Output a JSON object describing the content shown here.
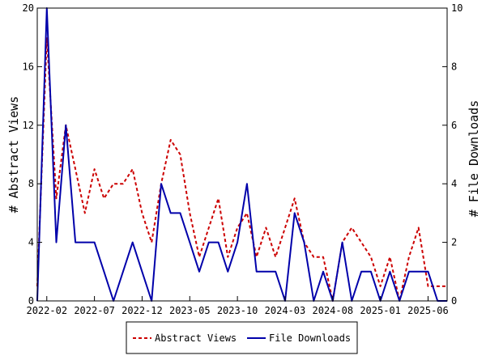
{
  "chart_data": {
    "type": "line",
    "title": "",
    "x_tick_labels": [
      "2022-02",
      "2022-07",
      "2022-12",
      "2023-05",
      "2023-10",
      "2024-03",
      "2024-08",
      "2025-01",
      "2025-06"
    ],
    "x_range": [
      "2022-01",
      "2025-08"
    ],
    "x": [
      "2022-01",
      "2022-02",
      "2022-03",
      "2022-04",
      "2022-05",
      "2022-06",
      "2022-07",
      "2022-08",
      "2022-09",
      "2022-10",
      "2022-11",
      "2022-12",
      "2023-01",
      "2023-02",
      "2023-03",
      "2023-04",
      "2023-05",
      "2023-06",
      "2023-07",
      "2023-08",
      "2023-09",
      "2023-10",
      "2023-11",
      "2023-12",
      "2024-01",
      "2024-02",
      "2024-03",
      "2024-04",
      "2024-05",
      "2024-06",
      "2024-07",
      "2024-08",
      "2024-09",
      "2024-10",
      "2024-11",
      "2024-12",
      "2025-01",
      "2025-02",
      "2025-03",
      "2025-04",
      "2025-05",
      "2025-06",
      "2025-07",
      "2025-08"
    ],
    "y_left": {
      "label": "# Abstract Views",
      "range": [
        0,
        20
      ],
      "ticks": [
        0,
        4,
        8,
        12,
        16,
        20
      ]
    },
    "y_right": {
      "label": "# File Downloads",
      "range": [
        0,
        10
      ],
      "ticks": [
        0,
        2,
        4,
        6,
        8,
        10
      ]
    },
    "series": [
      {
        "name": "Abstract Views",
        "axis": "left",
        "color": "#cc0000",
        "style": "dashed",
        "values": [
          1,
          18,
          7,
          12,
          9,
          6,
          9,
          7,
          8,
          8,
          9,
          6,
          4,
          8,
          11,
          10,
          6,
          3,
          5,
          7,
          3,
          5,
          6,
          3,
          5,
          3,
          5,
          7,
          4,
          3,
          3,
          0,
          4,
          5,
          4,
          3,
          1,
          3,
          0,
          3,
          5,
          1,
          1,
          1
        ]
      },
      {
        "name": "File Downloads",
        "axis": "right",
        "color": "#0000aa",
        "style": "solid",
        "values": [
          0,
          10,
          2,
          6,
          2,
          2,
          2,
          1,
          0,
          1,
          2,
          1,
          0,
          4,
          3,
          3,
          2,
          1,
          2,
          2,
          1,
          2,
          4,
          1,
          1,
          1,
          0,
          3,
          2,
          0,
          1,
          0,
          2,
          0,
          1,
          1,
          0,
          1,
          0,
          1,
          1,
          1,
          0,
          0
        ]
      }
    ],
    "grid": false,
    "legend": "bottom-center"
  }
}
